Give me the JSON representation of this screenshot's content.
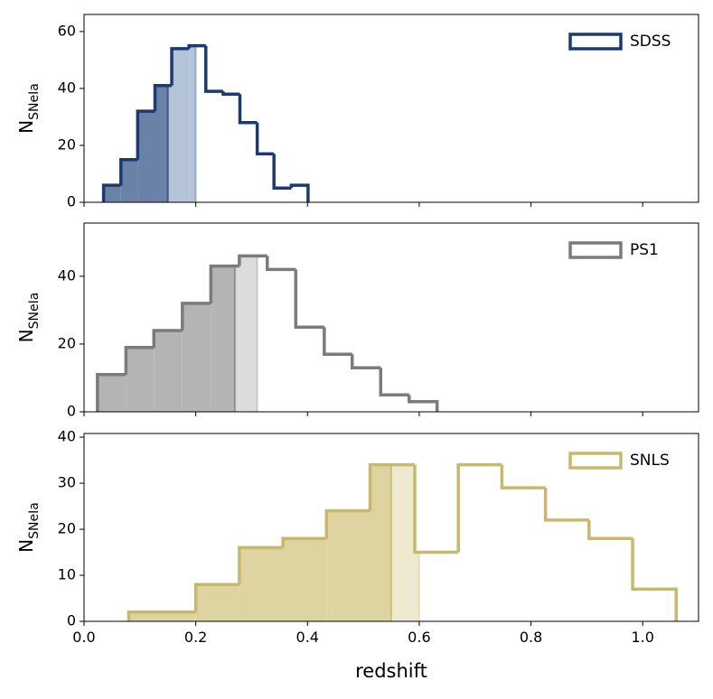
{
  "chart_data": [
    {
      "type": "histogram",
      "series_name": "SDSS",
      "color": "#1b3a6f",
      "fill_dark": "#6a82a8",
      "fill_light": "#b5c3d8",
      "bins": [
        0.035,
        0.066,
        0.096,
        0.127,
        0.157,
        0.188,
        0.218,
        0.249,
        0.279,
        0.31,
        0.34,
        0.371,
        0.401
      ],
      "counts": [
        6,
        15,
        32,
        41,
        54,
        55,
        39,
        38,
        28,
        17,
        5,
        6
      ],
      "shade_dark_until": 0.15,
      "shade_light_until": 0.2,
      "ylabel": {
        "main": "N",
        "sub": "SNeIa"
      },
      "xlim": [
        0,
        1.1
      ],
      "ylim": [
        0,
        66
      ],
      "xticks": [
        0,
        0.2,
        0.4,
        0.6,
        0.8,
        1.0
      ],
      "yticks": [
        0,
        20,
        40,
        60
      ],
      "legend": "upper right"
    },
    {
      "type": "histogram",
      "series_name": "PS1",
      "color": "#7b7b7b",
      "fill_dark": "#b4b4b4",
      "fill_light": "#dcdcdc",
      "bins": [
        0.024,
        0.075,
        0.125,
        0.176,
        0.227,
        0.278,
        0.328,
        0.379,
        0.43,
        0.48,
        0.531,
        0.582,
        0.632
      ],
      "counts": [
        11,
        19,
        24,
        32,
        43,
        46,
        42,
        25,
        17,
        13,
        5,
        3
      ],
      "shade_dark_until": 0.27,
      "shade_light_until": 0.31,
      "ylabel": {
        "main": "N",
        "sub": "SNeIa"
      },
      "xlim": [
        0,
        1.1
      ],
      "ylim": [
        0,
        55.7
      ],
      "xticks": [
        0,
        0.2,
        0.4,
        0.6,
        0.8,
        1.0
      ],
      "yticks": [
        0,
        20,
        40
      ],
      "legend": "upper right"
    },
    {
      "type": "histogram",
      "series_name": "SNLS",
      "color": "#c8b86b",
      "fill_dark": "#ddd4a2",
      "fill_light": "#efe9d0",
      "bins": [
        0.08,
        0.2,
        0.278,
        0.356,
        0.434,
        0.512,
        0.592,
        0.67,
        0.748,
        0.826,
        0.904,
        0.982,
        1.06
      ],
      "counts": [
        2,
        8,
        16,
        18,
        24,
        34,
        15,
        34,
        29,
        22,
        18,
        7
      ],
      "shade_dark_until": 0.55,
      "shade_light_until": 0.6,
      "ylabel": {
        "main": "N",
        "sub": "SNeIa"
      },
      "xlabel": "redshift",
      "xlim": [
        0,
        1.1
      ],
      "ylim": [
        0,
        40.8
      ],
      "xticks": [
        {
          "value": 0,
          "label": "0.0"
        },
        {
          "value": 0.2,
          "label": "0.2"
        },
        {
          "value": 0.4,
          "label": "0.4"
        },
        {
          "value": 0.6,
          "label": "0.6"
        },
        {
          "value": 0.8,
          "label": "0.8"
        },
        {
          "value": 1.0,
          "label": "1.0"
        }
      ],
      "yticks": [
        0,
        10,
        20,
        30,
        40
      ],
      "legend": "upper right"
    }
  ]
}
